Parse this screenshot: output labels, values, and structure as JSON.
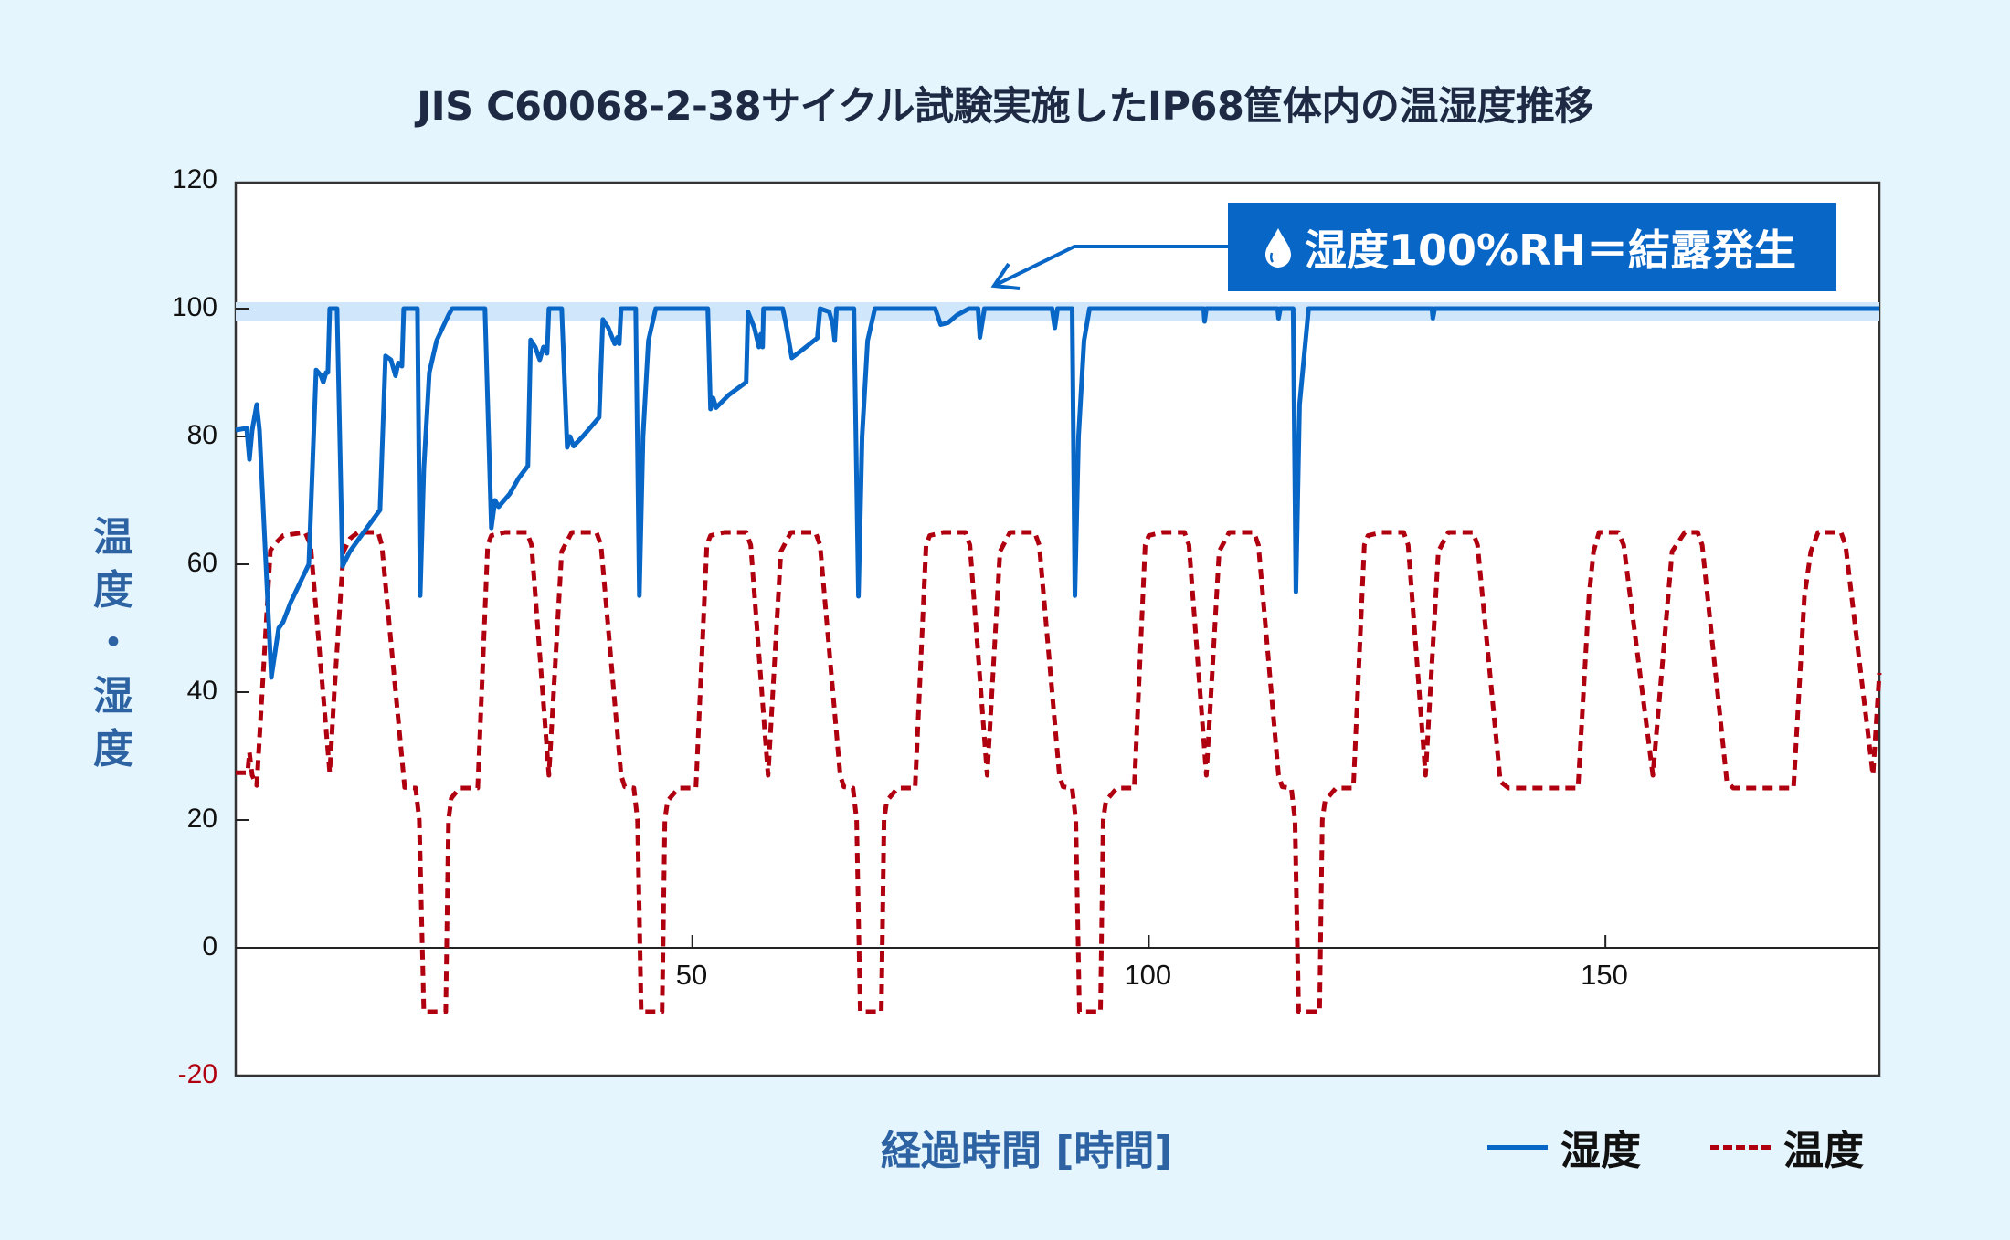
{
  "title": "JIS C60068-2-38サイクル試験実施したIP68筐体内の温湿度推移",
  "callout": {
    "icon": "water-drop-icon",
    "text": "湿度100%RH＝結露発生"
  },
  "y_axis": {
    "label_chars": [
      "温",
      "度",
      "・",
      "湿",
      "度"
    ],
    "ticks": [
      "120",
      "100",
      "80",
      "60",
      "40",
      "20",
      "0",
      "-20"
    ]
  },
  "x_axis": {
    "label": "経過時間 [時間]",
    "ticks": [
      "50",
      "100",
      "150"
    ]
  },
  "legend": [
    {
      "name": "湿度",
      "color": "#0866c6",
      "style": "solid"
    },
    {
      "name": "温度",
      "color": "#b00010",
      "style": "dashed"
    }
  ],
  "colors": {
    "background": "#e5f5fd",
    "humidity": "#0866c6",
    "temperature": "#b00010",
    "band": "#cfe6fb",
    "callout": "#0866c6",
    "negative_tick": "#b00010"
  },
  "chart_data": {
    "type": "line",
    "title": "JIS C60068-2-38サイクル試験実施したIP68筐体内の温湿度推移",
    "xlabel": "経過時間 [時間]",
    "ylabel": "温度・湿度",
    "xlim": [
      0,
      180
    ],
    "ylim": [
      -20,
      120
    ],
    "xticks": [
      50,
      100,
      150
    ],
    "yticks": [
      -20,
      0,
      20,
      40,
      60,
      80,
      100,
      120
    ],
    "grid": false,
    "legend_position": "bottom-right",
    "annotations": [
      {
        "text": "湿度100%RH＝結露発生",
        "arrow_to": [
          83,
          104
        ],
        "band": [
          98,
          101
        ]
      }
    ],
    "series": [
      {
        "name": "湿度",
        "style": "solid",
        "points": [
          [
            0,
            81
          ],
          [
            1.2,
            81.3
          ],
          [
            1.5,
            76.4
          ],
          [
            1.8,
            81
          ],
          [
            2.3,
            85
          ],
          [
            2.6,
            81
          ],
          [
            3.9,
            42.3
          ],
          [
            4.7,
            50
          ],
          [
            5.2,
            51
          ],
          [
            6,
            54
          ],
          [
            7,
            57
          ],
          [
            8,
            60
          ],
          [
            8.8,
            90.4
          ],
          [
            9.3,
            89.6
          ],
          [
            9.6,
            88.5
          ],
          [
            9.9,
            90
          ],
          [
            10.1,
            90
          ],
          [
            10.3,
            100
          ],
          [
            11.1,
            100
          ],
          [
            11.7,
            59.7
          ],
          [
            12.5,
            62
          ],
          [
            13.5,
            64
          ],
          [
            15.8,
            68.5
          ],
          [
            16.4,
            92.6
          ],
          [
            17,
            92
          ],
          [
            17.5,
            89.5
          ],
          [
            17.8,
            91.5
          ],
          [
            18.2,
            91
          ],
          [
            18.4,
            100
          ],
          [
            19.9,
            100
          ],
          [
            20.2,
            55.1
          ],
          [
            20.6,
            75
          ],
          [
            21.2,
            90
          ],
          [
            22,
            95
          ],
          [
            23.3,
            99
          ],
          [
            23.7,
            100
          ],
          [
            27.3,
            100
          ],
          [
            28,
            65.7
          ],
          [
            28.4,
            70
          ],
          [
            28.8,
            69
          ],
          [
            30,
            71
          ],
          [
            31,
            73.5
          ],
          [
            32,
            75.4
          ],
          [
            32.3,
            95.1
          ],
          [
            32.8,
            94
          ],
          [
            33.3,
            92
          ],
          [
            33.7,
            94
          ],
          [
            34.1,
            93
          ],
          [
            34.3,
            100
          ],
          [
            35.7,
            100
          ],
          [
            36.3,
            78.3
          ],
          [
            36.6,
            80
          ],
          [
            37,
            78.5
          ],
          [
            38,
            80
          ],
          [
            39.8,
            83
          ],
          [
            40.2,
            98.3
          ],
          [
            40.8,
            97
          ],
          [
            41.5,
            94.5
          ],
          [
            41.8,
            95.5
          ],
          [
            42,
            94.5
          ],
          [
            42.2,
            100
          ],
          [
            43.8,
            100
          ],
          [
            44.2,
            55.1
          ],
          [
            44.6,
            80
          ],
          [
            45.2,
            95
          ],
          [
            46,
            100
          ],
          [
            51.7,
            100
          ],
          [
            52,
            84.3
          ],
          [
            52.3,
            86
          ],
          [
            52.6,
            84.5
          ],
          [
            54,
            86.5
          ],
          [
            55.9,
            88.5
          ],
          [
            56.1,
            99.5
          ],
          [
            56.8,
            97
          ],
          [
            57.3,
            94
          ],
          [
            57.5,
            96
          ],
          [
            57.7,
            94
          ],
          [
            57.8,
            100
          ],
          [
            59.9,
            100
          ],
          [
            60.2,
            98
          ],
          [
            60.9,
            92.3
          ],
          [
            62,
            93.5
          ],
          [
            63.7,
            95.4
          ],
          [
            64,
            100
          ],
          [
            65,
            99.5
          ],
          [
            65.4,
            97.5
          ],
          [
            65.6,
            95
          ],
          [
            65.8,
            100
          ],
          [
            67.7,
            100
          ],
          [
            68.2,
            55
          ],
          [
            68.6,
            80
          ],
          [
            69.2,
            95
          ],
          [
            70,
            100
          ],
          [
            76.6,
            100
          ],
          [
            77.2,
            97.5
          ],
          [
            78,
            97.8
          ],
          [
            79,
            99
          ],
          [
            80.3,
            100
          ],
          [
            81.3,
            100
          ],
          [
            81.5,
            95.5
          ],
          [
            82,
            100
          ],
          [
            89.4,
            100
          ],
          [
            89.7,
            97
          ],
          [
            90,
            100
          ],
          [
            91.6,
            100
          ],
          [
            91.9,
            55.1
          ],
          [
            92.3,
            80
          ],
          [
            92.9,
            95
          ],
          [
            93.5,
            100
          ],
          [
            106,
            100
          ],
          [
            106.1,
            98
          ],
          [
            106.3,
            100
          ],
          [
            114.1,
            100
          ],
          [
            114.2,
            98.5
          ],
          [
            114.4,
            100
          ],
          [
            115.8,
            100
          ],
          [
            116.1,
            55.7
          ],
          [
            116.5,
            85
          ],
          [
            117.5,
            100
          ],
          [
            131,
            100
          ],
          [
            131.1,
            98.5
          ],
          [
            131.3,
            100
          ],
          [
            180,
            100
          ]
        ]
      },
      {
        "name": "温度",
        "style": "dashed",
        "points": [
          [
            0,
            27.4
          ],
          [
            1.3,
            27.4
          ],
          [
            1.5,
            30.6
          ],
          [
            1.8,
            27
          ],
          [
            2.3,
            25.4
          ],
          [
            3.3,
            50
          ],
          [
            3.8,
            62.2
          ],
          [
            4.5,
            63.5
          ],
          [
            5.2,
            64.5
          ],
          [
            7.6,
            65
          ],
          [
            8.2,
            63
          ],
          [
            10.3,
            27.4
          ],
          [
            10.8,
            40
          ],
          [
            11.8,
            62
          ],
          [
            12.5,
            64
          ],
          [
            13.4,
            65
          ],
          [
            15.6,
            65
          ],
          [
            16,
            63
          ],
          [
            18.5,
            25.1
          ],
          [
            19.7,
            25
          ],
          [
            20.1,
            20
          ],
          [
            20.6,
            -10
          ],
          [
            23,
            -10
          ],
          [
            23.3,
            20
          ],
          [
            23.6,
            23.4
          ],
          [
            24.5,
            25
          ],
          [
            26.5,
            25
          ],
          [
            27.6,
            63
          ],
          [
            28,
            64.5
          ],
          [
            29.5,
            65
          ],
          [
            31.9,
            65
          ],
          [
            32.4,
            63
          ],
          [
            34.3,
            27
          ],
          [
            35.7,
            62
          ],
          [
            36.8,
            65
          ],
          [
            39.5,
            65
          ],
          [
            40,
            63
          ],
          [
            42.2,
            27
          ],
          [
            42.6,
            25.2
          ],
          [
            43.6,
            25
          ],
          [
            44,
            20
          ],
          [
            44.4,
            -10
          ],
          [
            46.7,
            -10
          ],
          [
            47,
            20
          ],
          [
            47.3,
            23
          ],
          [
            48.5,
            25
          ],
          [
            50.4,
            25
          ],
          [
            51.6,
            63
          ],
          [
            52,
            64.5
          ],
          [
            53.5,
            65
          ],
          [
            55.9,
            65
          ],
          [
            56.4,
            63
          ],
          [
            58.3,
            27
          ],
          [
            59.7,
            62
          ],
          [
            60.8,
            65
          ],
          [
            63.5,
            65
          ],
          [
            64,
            63
          ],
          [
            66.2,
            27
          ],
          [
            66.6,
            25.2
          ],
          [
            67.6,
            25
          ],
          [
            68,
            20
          ],
          [
            68.4,
            -10
          ],
          [
            70.7,
            -10
          ],
          [
            71,
            20
          ],
          [
            71.3,
            23
          ],
          [
            72.5,
            25
          ],
          [
            74.4,
            25
          ],
          [
            75.6,
            63
          ],
          [
            76,
            64.5
          ],
          [
            77.5,
            65
          ],
          [
            79.9,
            65
          ],
          [
            80.4,
            63
          ],
          [
            82.3,
            27
          ],
          [
            83.7,
            62
          ],
          [
            84.8,
            65
          ],
          [
            87.5,
            65
          ],
          [
            88,
            63
          ],
          [
            90.2,
            27
          ],
          [
            90.6,
            25.2
          ],
          [
            91.6,
            25
          ],
          [
            92,
            20
          ],
          [
            92.4,
            -10
          ],
          [
            94.7,
            -10
          ],
          [
            95,
            20
          ],
          [
            95.3,
            23
          ],
          [
            96.5,
            25
          ],
          [
            98.4,
            25
          ],
          [
            99.6,
            63
          ],
          [
            100,
            64.5
          ],
          [
            101.5,
            65
          ],
          [
            103.9,
            65
          ],
          [
            104.4,
            63
          ],
          [
            106.3,
            27
          ],
          [
            107.7,
            62
          ],
          [
            108.8,
            65
          ],
          [
            111.5,
            65
          ],
          [
            112,
            63
          ],
          [
            114.2,
            27
          ],
          [
            114.6,
            25.2
          ],
          [
            115.6,
            25
          ],
          [
            116,
            20
          ],
          [
            116.4,
            -10
          ],
          [
            118.7,
            -10
          ],
          [
            119,
            20
          ],
          [
            119.3,
            23
          ],
          [
            120.5,
            25
          ],
          [
            122.4,
            25
          ],
          [
            123.6,
            63
          ],
          [
            124,
            64.5
          ],
          [
            125.5,
            65
          ],
          [
            127.9,
            65
          ],
          [
            128.4,
            63
          ],
          [
            130.3,
            27
          ],
          [
            131.7,
            62
          ],
          [
            132.8,
            65
          ],
          [
            135.5,
            65
          ],
          [
            136,
            63
          ],
          [
            138.5,
            26
          ],
          [
            139.4,
            25
          ],
          [
            147,
            25
          ],
          [
            148.2,
            55
          ],
          [
            148.7,
            62
          ],
          [
            149.3,
            65
          ],
          [
            151.4,
            65
          ],
          [
            152,
            63
          ],
          [
            155.2,
            27
          ],
          [
            157.3,
            62
          ],
          [
            158.7,
            65
          ],
          [
            160.1,
            65
          ],
          [
            160.6,
            63
          ],
          [
            163.3,
            26
          ],
          [
            164,
            25
          ],
          [
            170.6,
            25
          ],
          [
            171.8,
            55
          ],
          [
            172.5,
            62
          ],
          [
            173.3,
            65
          ],
          [
            175.8,
            65
          ],
          [
            176.3,
            63
          ],
          [
            179.3,
            27
          ],
          [
            180,
            43
          ]
        ]
      }
    ]
  }
}
